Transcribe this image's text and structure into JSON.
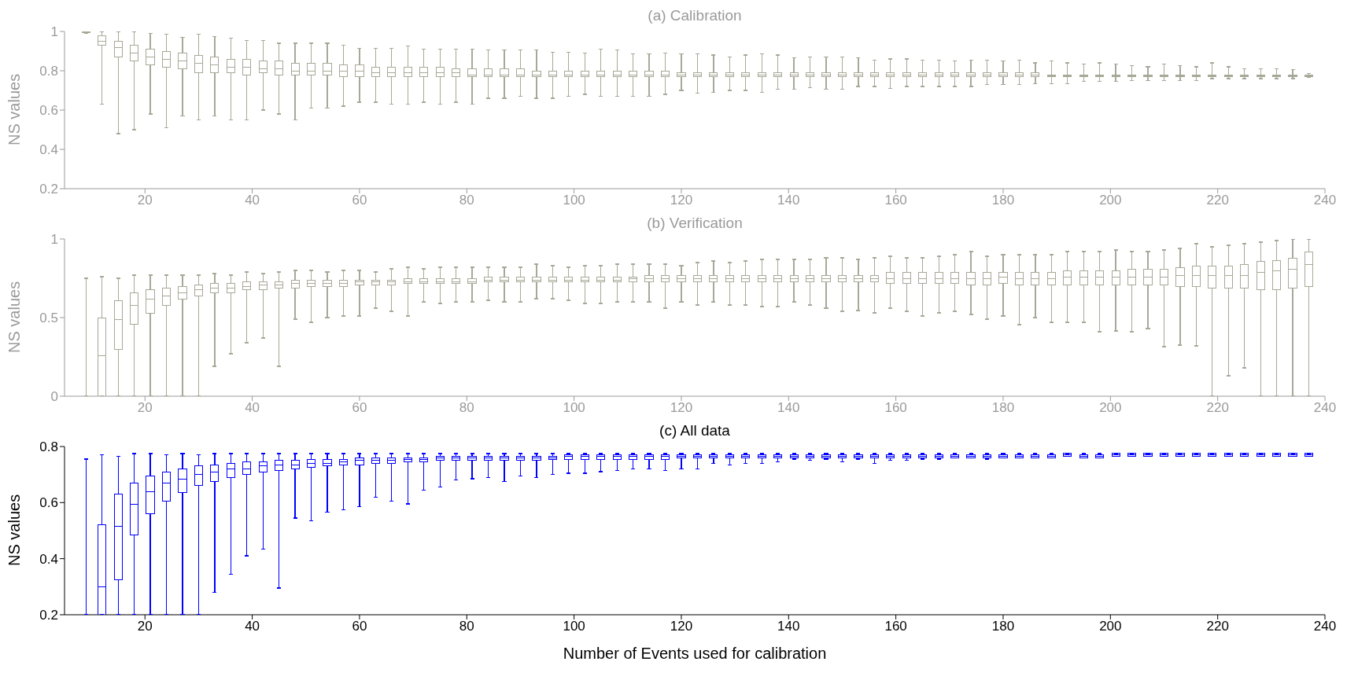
{
  "chart_data": [
    {
      "type": "box",
      "title": "(a) Calibration",
      "ylabel": "NS values",
      "color": "#a8a898",
      "xlim": [
        5,
        240
      ],
      "xticks": [
        20,
        40,
        60,
        80,
        100,
        120,
        140,
        160,
        180,
        200,
        220,
        240
      ],
      "ylim": [
        0.2,
        1
      ],
      "yticks": [
        0.2,
        0.4,
        0.6,
        0.8,
        1
      ],
      "x": [
        9,
        12,
        15,
        18,
        21,
        24,
        27,
        30,
        33,
        36,
        39,
        42,
        45,
        48,
        51,
        54,
        57,
        60,
        63,
        66,
        69,
        72,
        75,
        78,
        81,
        84,
        87,
        90,
        93,
        96,
        99,
        102,
        105,
        108,
        111,
        114,
        117,
        120,
        123,
        126,
        129,
        132,
        135,
        138,
        141,
        144,
        147,
        150,
        153,
        156,
        159,
        162,
        165,
        168,
        171,
        174,
        177,
        180,
        183,
        186,
        189,
        192,
        195,
        198,
        201,
        204,
        207,
        210,
        213,
        216,
        219,
        222,
        225,
        228,
        231,
        234,
        237
      ],
      "boxes": [
        {
          "low": 0.99,
          "q1": 0.995,
          "median": 0.997,
          "q3": 0.999,
          "high": 1
        },
        {
          "low": 0.63,
          "q1": 0.93,
          "median": 0.95,
          "q3": 0.98,
          "high": 1
        },
        {
          "low": 0.48,
          "q1": 0.87,
          "median": 0.92,
          "q3": 0.95,
          "high": 1
        },
        {
          "low": 0.5,
          "q1": 0.85,
          "median": 0.89,
          "q3": 0.93,
          "high": 1
        },
        {
          "low": 0.58,
          "q1": 0.83,
          "median": 0.87,
          "q3": 0.91,
          "high": 0.99
        },
        {
          "low": 0.51,
          "q1": 0.82,
          "median": 0.86,
          "q3": 0.9,
          "high": 0.985
        },
        {
          "low": 0.57,
          "q1": 0.81,
          "median": 0.85,
          "q3": 0.89,
          "high": 0.97
        },
        {
          "low": 0.55,
          "q1": 0.79,
          "median": 0.84,
          "q3": 0.88,
          "high": 0.985
        },
        {
          "low": 0.57,
          "q1": 0.79,
          "median": 0.83,
          "q3": 0.87,
          "high": 0.975
        },
        {
          "low": 0.55,
          "q1": 0.79,
          "median": 0.82,
          "q3": 0.86,
          "high": 0.965
        },
        {
          "low": 0.55,
          "q1": 0.78,
          "median": 0.82,
          "q3": 0.86,
          "high": 0.955
        },
        {
          "low": 0.6,
          "q1": 0.79,
          "median": 0.81,
          "q3": 0.85,
          "high": 0.955
        },
        {
          "low": 0.58,
          "q1": 0.78,
          "median": 0.81,
          "q3": 0.85,
          "high": 0.94
        },
        {
          "low": 0.55,
          "q1": 0.78,
          "median": 0.8,
          "q3": 0.84,
          "high": 0.94
        },
        {
          "low": 0.61,
          "q1": 0.78,
          "median": 0.8,
          "q3": 0.84,
          "high": 0.94
        },
        {
          "low": 0.61,
          "q1": 0.78,
          "median": 0.8,
          "q3": 0.84,
          "high": 0.94
        },
        {
          "low": 0.62,
          "q1": 0.77,
          "median": 0.8,
          "q3": 0.83,
          "high": 0.93
        },
        {
          "low": 0.64,
          "q1": 0.77,
          "median": 0.8,
          "q3": 0.83,
          "high": 0.915
        },
        {
          "low": 0.64,
          "q1": 0.77,
          "median": 0.79,
          "q3": 0.82,
          "high": 0.915
        },
        {
          "low": 0.63,
          "q1": 0.77,
          "median": 0.79,
          "q3": 0.82,
          "high": 0.915
        },
        {
          "low": 0.63,
          "q1": 0.77,
          "median": 0.79,
          "q3": 0.82,
          "high": 0.925
        },
        {
          "low": 0.64,
          "q1": 0.77,
          "median": 0.79,
          "q3": 0.82,
          "high": 0.91
        },
        {
          "low": 0.63,
          "q1": 0.77,
          "median": 0.79,
          "q3": 0.82,
          "high": 0.91
        },
        {
          "low": 0.64,
          "q1": 0.77,
          "median": 0.79,
          "q3": 0.81,
          "high": 0.91
        },
        {
          "low": 0.63,
          "q1": 0.77,
          "median": 0.78,
          "q3": 0.81,
          "high": 0.91
        },
        {
          "low": 0.66,
          "q1": 0.77,
          "median": 0.78,
          "q3": 0.81,
          "high": 0.905
        },
        {
          "low": 0.66,
          "q1": 0.77,
          "median": 0.78,
          "q3": 0.81,
          "high": 0.905
        },
        {
          "low": 0.67,
          "q1": 0.77,
          "median": 0.78,
          "q3": 0.81,
          "high": 0.905
        },
        {
          "low": 0.66,
          "q1": 0.77,
          "median": 0.78,
          "q3": 0.8,
          "high": 0.905
        },
        {
          "low": 0.66,
          "q1": 0.77,
          "median": 0.78,
          "q3": 0.8,
          "high": 0.895
        },
        {
          "low": 0.67,
          "q1": 0.77,
          "median": 0.78,
          "q3": 0.8,
          "high": 0.895
        },
        {
          "low": 0.68,
          "q1": 0.77,
          "median": 0.78,
          "q3": 0.8,
          "high": 0.89
        },
        {
          "low": 0.67,
          "q1": 0.77,
          "median": 0.78,
          "q3": 0.8,
          "high": 0.91
        },
        {
          "low": 0.67,
          "q1": 0.77,
          "median": 0.78,
          "q3": 0.8,
          "high": 0.905
        },
        {
          "low": 0.67,
          "q1": 0.77,
          "median": 0.78,
          "q3": 0.8,
          "high": 0.885
        },
        {
          "low": 0.67,
          "q1": 0.77,
          "median": 0.78,
          "q3": 0.8,
          "high": 0.885
        },
        {
          "low": 0.68,
          "q1": 0.77,
          "median": 0.78,
          "q3": 0.8,
          "high": 0.89
        },
        {
          "low": 0.7,
          "q1": 0.77,
          "median": 0.78,
          "q3": 0.79,
          "high": 0.885
        },
        {
          "low": 0.685,
          "q1": 0.77,
          "median": 0.78,
          "q3": 0.79,
          "high": 0.885
        },
        {
          "low": 0.69,
          "q1": 0.77,
          "median": 0.78,
          "q3": 0.79,
          "high": 0.88
        },
        {
          "low": 0.7,
          "q1": 0.77,
          "median": 0.78,
          "q3": 0.79,
          "high": 0.87
        },
        {
          "low": 0.7,
          "q1": 0.77,
          "median": 0.78,
          "q3": 0.79,
          "high": 0.88
        },
        {
          "low": 0.69,
          "q1": 0.77,
          "median": 0.78,
          "q3": 0.79,
          "high": 0.885
        },
        {
          "low": 0.705,
          "q1": 0.77,
          "median": 0.78,
          "q3": 0.79,
          "high": 0.88
        },
        {
          "low": 0.705,
          "q1": 0.77,
          "median": 0.78,
          "q3": 0.79,
          "high": 0.865
        },
        {
          "low": 0.715,
          "q1": 0.77,
          "median": 0.78,
          "q3": 0.79,
          "high": 0.87
        },
        {
          "low": 0.705,
          "q1": 0.77,
          "median": 0.78,
          "q3": 0.79,
          "high": 0.87
        },
        {
          "low": 0.705,
          "q1": 0.77,
          "median": 0.78,
          "q3": 0.79,
          "high": 0.87
        },
        {
          "low": 0.72,
          "q1": 0.77,
          "median": 0.78,
          "q3": 0.79,
          "high": 0.865
        },
        {
          "low": 0.72,
          "q1": 0.77,
          "median": 0.78,
          "q3": 0.79,
          "high": 0.855
        },
        {
          "low": 0.71,
          "q1": 0.77,
          "median": 0.78,
          "q3": 0.79,
          "high": 0.86
        },
        {
          "low": 0.72,
          "q1": 0.77,
          "median": 0.78,
          "q3": 0.79,
          "high": 0.86
        },
        {
          "low": 0.72,
          "q1": 0.77,
          "median": 0.78,
          "q3": 0.79,
          "high": 0.855
        },
        {
          "low": 0.72,
          "q1": 0.77,
          "median": 0.78,
          "q3": 0.79,
          "high": 0.855
        },
        {
          "low": 0.72,
          "q1": 0.77,
          "median": 0.78,
          "q3": 0.79,
          "high": 0.85
        },
        {
          "low": 0.72,
          "q1": 0.77,
          "median": 0.78,
          "q3": 0.79,
          "high": 0.855
        },
        {
          "low": 0.73,
          "q1": 0.77,
          "median": 0.78,
          "q3": 0.79,
          "high": 0.855
        },
        {
          "low": 0.73,
          "q1": 0.77,
          "median": 0.78,
          "q3": 0.79,
          "high": 0.85
        },
        {
          "low": 0.73,
          "q1": 0.77,
          "median": 0.78,
          "q3": 0.79,
          "high": 0.855
        },
        {
          "low": 0.735,
          "q1": 0.77,
          "median": 0.78,
          "q3": 0.79,
          "high": 0.84
        },
        {
          "low": 0.735,
          "q1": 0.77,
          "median": 0.775,
          "q3": 0.78,
          "high": 0.85
        },
        {
          "low": 0.735,
          "q1": 0.77,
          "median": 0.775,
          "q3": 0.78,
          "high": 0.84
        },
        {
          "low": 0.745,
          "q1": 0.77,
          "median": 0.775,
          "q3": 0.78,
          "high": 0.835
        },
        {
          "low": 0.745,
          "q1": 0.77,
          "median": 0.775,
          "q3": 0.78,
          "high": 0.84
        },
        {
          "low": 0.745,
          "q1": 0.77,
          "median": 0.775,
          "q3": 0.78,
          "high": 0.835
        },
        {
          "low": 0.75,
          "q1": 0.77,
          "median": 0.775,
          "q3": 0.78,
          "high": 0.825
        },
        {
          "low": 0.75,
          "q1": 0.77,
          "median": 0.775,
          "q3": 0.78,
          "high": 0.82
        },
        {
          "low": 0.75,
          "q1": 0.77,
          "median": 0.775,
          "q3": 0.78,
          "high": 0.835
        },
        {
          "low": 0.75,
          "q1": 0.77,
          "median": 0.775,
          "q3": 0.78,
          "high": 0.825
        },
        {
          "low": 0.75,
          "q1": 0.77,
          "median": 0.775,
          "q3": 0.78,
          "high": 0.82
        },
        {
          "low": 0.76,
          "q1": 0.77,
          "median": 0.775,
          "q3": 0.78,
          "high": 0.84
        },
        {
          "low": 0.76,
          "q1": 0.77,
          "median": 0.775,
          "q3": 0.78,
          "high": 0.82
        },
        {
          "low": 0.76,
          "q1": 0.77,
          "median": 0.775,
          "q3": 0.78,
          "high": 0.81
        },
        {
          "low": 0.76,
          "q1": 0.77,
          "median": 0.775,
          "q3": 0.78,
          "high": 0.81
        },
        {
          "low": 0.76,
          "q1": 0.77,
          "median": 0.775,
          "q3": 0.78,
          "high": 0.81
        },
        {
          "low": 0.76,
          "q1": 0.77,
          "median": 0.775,
          "q3": 0.78,
          "high": 0.805
        },
        {
          "low": 0.765,
          "q1": 0.77,
          "median": 0.775,
          "q3": 0.78,
          "high": 0.785
        }
      ]
    },
    {
      "type": "box",
      "title": "(b) Verification",
      "ylabel": "NS values",
      "color": "#a8a898",
      "xlim": [
        5,
        240
      ],
      "xticks": [
        20,
        40,
        60,
        80,
        100,
        120,
        140,
        160,
        180,
        200,
        220,
        240
      ],
      "ylim": [
        0,
        1
      ],
      "yticks": [
        0,
        0.5,
        1
      ],
      "x": [
        9,
        12,
        15,
        18,
        21,
        24,
        27,
        30,
        33,
        36,
        39,
        42,
        45,
        48,
        51,
        54,
        57,
        60,
        63,
        66,
        69,
        72,
        75,
        78,
        81,
        84,
        87,
        90,
        93,
        96,
        99,
        102,
        105,
        108,
        111,
        114,
        117,
        120,
        123,
        126,
        129,
        132,
        135,
        138,
        141,
        144,
        147,
        150,
        153,
        156,
        159,
        162,
        165,
        168,
        171,
        174,
        177,
        180,
        183,
        186,
        189,
        192,
        195,
        198,
        201,
        204,
        207,
        210,
        213,
        216,
        219,
        222,
        225,
        228,
        231,
        234,
        237
      ],
      "boxes": [
        {
          "low": 0,
          "q1": 0,
          "median": 0,
          "q3": 0,
          "high": 0.75
        },
        {
          "low": 0,
          "q1": 0,
          "median": 0.26,
          "q3": 0.5,
          "high": 0.76
        },
        {
          "low": 0,
          "q1": 0.3,
          "median": 0.49,
          "q3": 0.61,
          "high": 0.75
        },
        {
          "low": 0,
          "q1": 0.46,
          "median": 0.58,
          "q3": 0.66,
          "high": 0.77
        },
        {
          "low": 0,
          "q1": 0.53,
          "median": 0.62,
          "q3": 0.68,
          "high": 0.77
        },
        {
          "low": 0,
          "q1": 0.58,
          "median": 0.64,
          "q3": 0.69,
          "high": 0.77
        },
        {
          "low": 0,
          "q1": 0.62,
          "median": 0.66,
          "q3": 0.7,
          "high": 0.77
        },
        {
          "low": 0,
          "q1": 0.64,
          "median": 0.68,
          "q3": 0.71,
          "high": 0.77
        },
        {
          "low": 0.19,
          "q1": 0.66,
          "median": 0.69,
          "q3": 0.72,
          "high": 0.78
        },
        {
          "low": 0.27,
          "q1": 0.66,
          "median": 0.69,
          "q3": 0.72,
          "high": 0.77
        },
        {
          "low": 0.34,
          "q1": 0.68,
          "median": 0.7,
          "q3": 0.73,
          "high": 0.79
        },
        {
          "low": 0.37,
          "q1": 0.68,
          "median": 0.71,
          "q3": 0.73,
          "high": 0.78
        },
        {
          "low": 0.19,
          "q1": 0.69,
          "median": 0.71,
          "q3": 0.73,
          "high": 0.79
        },
        {
          "low": 0.49,
          "q1": 0.69,
          "median": 0.72,
          "q3": 0.74,
          "high": 0.8
        },
        {
          "low": 0.47,
          "q1": 0.7,
          "median": 0.72,
          "q3": 0.74,
          "high": 0.8
        },
        {
          "low": 0.5,
          "q1": 0.7,
          "median": 0.72,
          "q3": 0.74,
          "high": 0.79
        },
        {
          "low": 0.51,
          "q1": 0.7,
          "median": 0.72,
          "q3": 0.74,
          "high": 0.8
        },
        {
          "low": 0.51,
          "q1": 0.71,
          "median": 0.73,
          "q3": 0.74,
          "high": 0.8
        },
        {
          "low": 0.56,
          "q1": 0.71,
          "median": 0.73,
          "q3": 0.74,
          "high": 0.79
        },
        {
          "low": 0.54,
          "q1": 0.71,
          "median": 0.73,
          "q3": 0.74,
          "high": 0.81
        },
        {
          "low": 0.51,
          "q1": 0.72,
          "median": 0.73,
          "q3": 0.75,
          "high": 0.82
        },
        {
          "low": 0.6,
          "q1": 0.72,
          "median": 0.73,
          "q3": 0.75,
          "high": 0.81
        },
        {
          "low": 0.59,
          "q1": 0.72,
          "median": 0.73,
          "q3": 0.75,
          "high": 0.82
        },
        {
          "low": 0.6,
          "q1": 0.72,
          "median": 0.73,
          "q3": 0.75,
          "high": 0.82
        },
        {
          "low": 0.6,
          "q1": 0.72,
          "median": 0.73,
          "q3": 0.75,
          "high": 0.82
        },
        {
          "low": 0.61,
          "q1": 0.73,
          "median": 0.74,
          "q3": 0.76,
          "high": 0.82
        },
        {
          "low": 0.6,
          "q1": 0.73,
          "median": 0.74,
          "q3": 0.76,
          "high": 0.82
        },
        {
          "low": 0.6,
          "q1": 0.73,
          "median": 0.74,
          "q3": 0.76,
          "high": 0.82
        },
        {
          "low": 0.62,
          "q1": 0.73,
          "median": 0.74,
          "q3": 0.76,
          "high": 0.84
        },
        {
          "low": 0.62,
          "q1": 0.73,
          "median": 0.74,
          "q3": 0.76,
          "high": 0.83
        },
        {
          "low": 0.61,
          "q1": 0.73,
          "median": 0.74,
          "q3": 0.76,
          "high": 0.82
        },
        {
          "low": 0.59,
          "q1": 0.73,
          "median": 0.74,
          "q3": 0.76,
          "high": 0.83
        },
        {
          "low": 0.59,
          "q1": 0.73,
          "median": 0.74,
          "q3": 0.76,
          "high": 0.83
        },
        {
          "low": 0.6,
          "q1": 0.73,
          "median": 0.74,
          "q3": 0.76,
          "high": 0.84
        },
        {
          "low": 0.6,
          "q1": 0.73,
          "median": 0.75,
          "q3": 0.76,
          "high": 0.84
        },
        {
          "low": 0.6,
          "q1": 0.73,
          "median": 0.75,
          "q3": 0.77,
          "high": 0.84
        },
        {
          "low": 0.56,
          "q1": 0.73,
          "median": 0.75,
          "q3": 0.77,
          "high": 0.84
        },
        {
          "low": 0.6,
          "q1": 0.73,
          "median": 0.75,
          "q3": 0.77,
          "high": 0.83
        },
        {
          "low": 0.58,
          "q1": 0.73,
          "median": 0.75,
          "q3": 0.77,
          "high": 0.85
        },
        {
          "low": 0.6,
          "q1": 0.73,
          "median": 0.75,
          "q3": 0.77,
          "high": 0.86
        },
        {
          "low": 0.58,
          "q1": 0.73,
          "median": 0.75,
          "q3": 0.77,
          "high": 0.85
        },
        {
          "low": 0.58,
          "q1": 0.73,
          "median": 0.75,
          "q3": 0.77,
          "high": 0.86
        },
        {
          "low": 0.57,
          "q1": 0.73,
          "median": 0.75,
          "q3": 0.77,
          "high": 0.87
        },
        {
          "low": 0.57,
          "q1": 0.73,
          "median": 0.75,
          "q3": 0.77,
          "high": 0.87
        },
        {
          "low": 0.6,
          "q1": 0.73,
          "median": 0.75,
          "q3": 0.77,
          "high": 0.87
        },
        {
          "low": 0.58,
          "q1": 0.73,
          "median": 0.75,
          "q3": 0.77,
          "high": 0.87
        },
        {
          "low": 0.56,
          "q1": 0.73,
          "median": 0.75,
          "q3": 0.77,
          "high": 0.88
        },
        {
          "low": 0.54,
          "q1": 0.73,
          "median": 0.75,
          "q3": 0.77,
          "high": 0.88
        },
        {
          "low": 0.545,
          "q1": 0.73,
          "median": 0.75,
          "q3": 0.77,
          "high": 0.87
        },
        {
          "low": 0.53,
          "q1": 0.73,
          "median": 0.75,
          "q3": 0.77,
          "high": 0.88
        },
        {
          "low": 0.56,
          "q1": 0.72,
          "median": 0.75,
          "q3": 0.79,
          "high": 0.89
        },
        {
          "low": 0.54,
          "q1": 0.72,
          "median": 0.75,
          "q3": 0.79,
          "high": 0.88
        },
        {
          "low": 0.51,
          "q1": 0.72,
          "median": 0.75,
          "q3": 0.79,
          "high": 0.88
        },
        {
          "low": 0.53,
          "q1": 0.72,
          "median": 0.75,
          "q3": 0.79,
          "high": 0.89
        },
        {
          "low": 0.54,
          "q1": 0.72,
          "median": 0.75,
          "q3": 0.79,
          "high": 0.9
        },
        {
          "low": 0.52,
          "q1": 0.71,
          "median": 0.75,
          "q3": 0.79,
          "high": 0.92
        },
        {
          "low": 0.49,
          "q1": 0.71,
          "median": 0.75,
          "q3": 0.79,
          "high": 0.89
        },
        {
          "low": 0.51,
          "q1": 0.72,
          "median": 0.76,
          "q3": 0.79,
          "high": 0.9
        },
        {
          "low": 0.455,
          "q1": 0.71,
          "median": 0.75,
          "q3": 0.79,
          "high": 0.9
        },
        {
          "low": 0.5,
          "q1": 0.71,
          "median": 0.75,
          "q3": 0.79,
          "high": 0.9
        },
        {
          "low": 0.47,
          "q1": 0.71,
          "median": 0.75,
          "q3": 0.79,
          "high": 0.9
        },
        {
          "low": 0.47,
          "q1": 0.71,
          "median": 0.76,
          "q3": 0.8,
          "high": 0.92
        },
        {
          "low": 0.47,
          "q1": 0.71,
          "median": 0.76,
          "q3": 0.8,
          "high": 0.92
        },
        {
          "low": 0.41,
          "q1": 0.71,
          "median": 0.76,
          "q3": 0.8,
          "high": 0.92
        },
        {
          "low": 0.415,
          "q1": 0.71,
          "median": 0.76,
          "q3": 0.8,
          "high": 0.93
        },
        {
          "low": 0.41,
          "q1": 0.71,
          "median": 0.76,
          "q3": 0.81,
          "high": 0.92
        },
        {
          "low": 0.43,
          "q1": 0.71,
          "median": 0.76,
          "q3": 0.81,
          "high": 0.92
        },
        {
          "low": 0.315,
          "q1": 0.71,
          "median": 0.76,
          "q3": 0.81,
          "high": 0.93
        },
        {
          "low": 0.325,
          "q1": 0.7,
          "median": 0.77,
          "q3": 0.82,
          "high": 0.94
        },
        {
          "low": 0.32,
          "q1": 0.7,
          "median": 0.77,
          "q3": 0.83,
          "high": 0.97
        },
        {
          "low": 0,
          "q1": 0.69,
          "median": 0.77,
          "q3": 0.83,
          "high": 0.95
        },
        {
          "low": 0.13,
          "q1": 0.69,
          "median": 0.77,
          "q3": 0.83,
          "high": 0.96
        },
        {
          "low": 0.18,
          "q1": 0.69,
          "median": 0.77,
          "q3": 0.84,
          "high": 0.97
        },
        {
          "low": 0,
          "q1": 0.68,
          "median": 0.79,
          "q3": 0.86,
          "high": 0.98
        },
        {
          "low": 0,
          "q1": 0.68,
          "median": 0.8,
          "q3": 0.865,
          "high": 0.99
        },
        {
          "low": 0,
          "q1": 0.69,
          "median": 0.81,
          "q3": 0.88,
          "high": 1
        },
        {
          "low": 0,
          "q1": 0.7,
          "median": 0.84,
          "q3": 0.92,
          "high": 1
        }
      ]
    },
    {
      "type": "box",
      "title": "(c) All data",
      "xlabel": "Number of Events used for calibration",
      "ylabel": "NS values",
      "color": "#0000ff",
      "xlim": [
        5,
        240
      ],
      "xticks": [
        20,
        40,
        60,
        80,
        100,
        120,
        140,
        160,
        180,
        200,
        220,
        240
      ],
      "ylim": [
        0.2,
        0.8
      ],
      "yticks": [
        0.2,
        0.4,
        0.6,
        0.8
      ],
      "x": [
        9,
        12,
        15,
        18,
        21,
        24,
        27,
        30,
        33,
        36,
        39,
        42,
        45,
        48,
        51,
        54,
        57,
        60,
        63,
        66,
        69,
        72,
        75,
        78,
        81,
        84,
        87,
        90,
        93,
        96,
        99,
        102,
        105,
        108,
        111,
        114,
        117,
        120,
        123,
        126,
        129,
        132,
        135,
        138,
        141,
        144,
        147,
        150,
        153,
        156,
        159,
        162,
        165,
        168,
        171,
        174,
        177,
        180,
        183,
        186,
        189,
        192,
        195,
        198,
        201,
        204,
        207,
        210,
        213,
        216,
        219,
        222,
        225,
        228,
        231,
        234,
        237
      ],
      "boxes": [
        {
          "low": 0.2,
          "q1": 0.2,
          "median": 0.2,
          "q3": 0.2,
          "high": 0.755
        },
        {
          "low": 0.2,
          "q1": 0.2,
          "median": 0.3,
          "q3": 0.52,
          "high": 0.77
        },
        {
          "low": 0.2,
          "q1": 0.325,
          "median": 0.515,
          "q3": 0.63,
          "high": 0.765
        },
        {
          "low": 0.2,
          "q1": 0.485,
          "median": 0.595,
          "q3": 0.67,
          "high": 0.775
        },
        {
          "low": 0.2,
          "q1": 0.56,
          "median": 0.64,
          "q3": 0.695,
          "high": 0.775
        },
        {
          "low": 0.2,
          "q1": 0.605,
          "median": 0.67,
          "q3": 0.71,
          "high": 0.77
        },
        {
          "low": 0.2,
          "q1": 0.635,
          "median": 0.685,
          "q3": 0.72,
          "high": 0.775
        },
        {
          "low": 0.2,
          "q1": 0.66,
          "median": 0.7,
          "q3": 0.73,
          "high": 0.77
        },
        {
          "low": 0.28,
          "q1": 0.675,
          "median": 0.71,
          "q3": 0.735,
          "high": 0.775
        },
        {
          "low": 0.345,
          "q1": 0.69,
          "median": 0.72,
          "q3": 0.74,
          "high": 0.775
        },
        {
          "low": 0.41,
          "q1": 0.7,
          "median": 0.72,
          "q3": 0.745,
          "high": 0.775
        },
        {
          "low": 0.435,
          "q1": 0.71,
          "median": 0.73,
          "q3": 0.745,
          "high": 0.775
        },
        {
          "low": 0.295,
          "q1": 0.715,
          "median": 0.735,
          "q3": 0.75,
          "high": 0.775
        },
        {
          "low": 0.545,
          "q1": 0.72,
          "median": 0.735,
          "q3": 0.75,
          "high": 0.775
        },
        {
          "low": 0.535,
          "q1": 0.725,
          "median": 0.74,
          "q3": 0.755,
          "high": 0.775
        },
        {
          "low": 0.565,
          "q1": 0.73,
          "median": 0.74,
          "q3": 0.755,
          "high": 0.775
        },
        {
          "low": 0.575,
          "q1": 0.735,
          "median": 0.745,
          "q3": 0.755,
          "high": 0.775
        },
        {
          "low": 0.585,
          "q1": 0.735,
          "median": 0.75,
          "q3": 0.76,
          "high": 0.775
        },
        {
          "low": 0.62,
          "q1": 0.74,
          "median": 0.75,
          "q3": 0.76,
          "high": 0.775
        },
        {
          "low": 0.605,
          "q1": 0.74,
          "median": 0.75,
          "q3": 0.76,
          "high": 0.775
        },
        {
          "low": 0.595,
          "q1": 0.745,
          "median": 0.755,
          "q3": 0.76,
          "high": 0.775
        },
        {
          "low": 0.645,
          "q1": 0.745,
          "median": 0.755,
          "q3": 0.76,
          "high": 0.775
        },
        {
          "low": 0.655,
          "q1": 0.75,
          "median": 0.76,
          "q3": 0.765,
          "high": 0.775
        },
        {
          "low": 0.68,
          "q1": 0.75,
          "median": 0.76,
          "q3": 0.765,
          "high": 0.775
        },
        {
          "low": 0.685,
          "q1": 0.75,
          "median": 0.76,
          "q3": 0.765,
          "high": 0.775
        },
        {
          "low": 0.69,
          "q1": 0.75,
          "median": 0.76,
          "q3": 0.765,
          "high": 0.775
        },
        {
          "low": 0.675,
          "q1": 0.75,
          "median": 0.76,
          "q3": 0.765,
          "high": 0.775
        },
        {
          "low": 0.695,
          "q1": 0.75,
          "median": 0.76,
          "q3": 0.765,
          "high": 0.775
        },
        {
          "low": 0.69,
          "q1": 0.75,
          "median": 0.76,
          "q3": 0.765,
          "high": 0.775
        },
        {
          "low": 0.7,
          "q1": 0.755,
          "median": 0.76,
          "q3": 0.765,
          "high": 0.775
        },
        {
          "low": 0.705,
          "q1": 0.755,
          "median": 0.765,
          "q3": 0.77,
          "high": 0.775
        },
        {
          "low": 0.705,
          "q1": 0.755,
          "median": 0.765,
          "q3": 0.77,
          "high": 0.775
        },
        {
          "low": 0.71,
          "q1": 0.755,
          "median": 0.765,
          "q3": 0.77,
          "high": 0.775
        },
        {
          "low": 0.715,
          "q1": 0.755,
          "median": 0.765,
          "q3": 0.77,
          "high": 0.775
        },
        {
          "low": 0.72,
          "q1": 0.755,
          "median": 0.765,
          "q3": 0.77,
          "high": 0.775
        },
        {
          "low": 0.72,
          "q1": 0.755,
          "median": 0.765,
          "q3": 0.77,
          "high": 0.775
        },
        {
          "low": 0.715,
          "q1": 0.755,
          "median": 0.765,
          "q3": 0.77,
          "high": 0.775
        },
        {
          "low": 0.72,
          "q1": 0.76,
          "median": 0.765,
          "q3": 0.77,
          "high": 0.775
        },
        {
          "low": 0.72,
          "q1": 0.76,
          "median": 0.765,
          "q3": 0.77,
          "high": 0.775
        },
        {
          "low": 0.74,
          "q1": 0.76,
          "median": 0.765,
          "q3": 0.77,
          "high": 0.775
        },
        {
          "low": 0.735,
          "q1": 0.76,
          "median": 0.765,
          "q3": 0.77,
          "high": 0.775
        },
        {
          "low": 0.74,
          "q1": 0.76,
          "median": 0.765,
          "q3": 0.77,
          "high": 0.775
        },
        {
          "low": 0.74,
          "q1": 0.76,
          "median": 0.765,
          "q3": 0.77,
          "high": 0.775
        },
        {
          "low": 0.745,
          "q1": 0.76,
          "median": 0.765,
          "q3": 0.77,
          "high": 0.775
        },
        {
          "low": 0.755,
          "q1": 0.76,
          "median": 0.765,
          "q3": 0.77,
          "high": 0.775
        },
        {
          "low": 0.75,
          "q1": 0.76,
          "median": 0.765,
          "q3": 0.77,
          "high": 0.775
        },
        {
          "low": 0.755,
          "q1": 0.76,
          "median": 0.765,
          "q3": 0.77,
          "high": 0.775
        },
        {
          "low": 0.745,
          "q1": 0.76,
          "median": 0.765,
          "q3": 0.77,
          "high": 0.775
        },
        {
          "low": 0.755,
          "q1": 0.76,
          "median": 0.765,
          "q3": 0.77,
          "high": 0.775
        },
        {
          "low": 0.74,
          "q1": 0.76,
          "median": 0.765,
          "q3": 0.77,
          "high": 0.775
        },
        {
          "low": 0.75,
          "q1": 0.76,
          "median": 0.765,
          "q3": 0.77,
          "high": 0.775
        },
        {
          "low": 0.75,
          "q1": 0.76,
          "median": 0.765,
          "q3": 0.77,
          "high": 0.775
        },
        {
          "low": 0.755,
          "q1": 0.76,
          "median": 0.765,
          "q3": 0.77,
          "high": 0.775
        },
        {
          "low": 0.755,
          "q1": 0.76,
          "median": 0.765,
          "q3": 0.77,
          "high": 0.775
        },
        {
          "low": 0.76,
          "q1": 0.76,
          "median": 0.765,
          "q3": 0.77,
          "high": 0.775
        },
        {
          "low": 0.76,
          "q1": 0.76,
          "median": 0.765,
          "q3": 0.77,
          "high": 0.775
        },
        {
          "low": 0.755,
          "q1": 0.76,
          "median": 0.765,
          "q3": 0.77,
          "high": 0.775
        },
        {
          "low": 0.76,
          "q1": 0.76,
          "median": 0.765,
          "q3": 0.77,
          "high": 0.775
        },
        {
          "low": 0.76,
          "q1": 0.76,
          "median": 0.765,
          "q3": 0.77,
          "high": 0.775
        },
        {
          "low": 0.76,
          "q1": 0.76,
          "median": 0.765,
          "q3": 0.77,
          "high": 0.775
        },
        {
          "low": 0.76,
          "q1": 0.76,
          "median": 0.765,
          "q3": 0.77,
          "high": 0.775
        },
        {
          "low": 0.765,
          "q1": 0.765,
          "median": 0.77,
          "q3": 0.775,
          "high": 0.775
        },
        {
          "low": 0.76,
          "q1": 0.76,
          "median": 0.765,
          "q3": 0.77,
          "high": 0.775
        },
        {
          "low": 0.76,
          "q1": 0.76,
          "median": 0.765,
          "q3": 0.77,
          "high": 0.775
        },
        {
          "low": 0.765,
          "q1": 0.765,
          "median": 0.77,
          "q3": 0.775,
          "high": 0.775
        },
        {
          "low": 0.765,
          "q1": 0.765,
          "median": 0.77,
          "q3": 0.775,
          "high": 0.775
        },
        {
          "low": 0.765,
          "q1": 0.765,
          "median": 0.77,
          "q3": 0.775,
          "high": 0.775
        },
        {
          "low": 0.765,
          "q1": 0.765,
          "median": 0.77,
          "q3": 0.775,
          "high": 0.775
        },
        {
          "low": 0.765,
          "q1": 0.765,
          "median": 0.77,
          "q3": 0.775,
          "high": 0.775
        },
        {
          "low": 0.765,
          "q1": 0.765,
          "median": 0.77,
          "q3": 0.775,
          "high": 0.775
        },
        {
          "low": 0.765,
          "q1": 0.765,
          "median": 0.77,
          "q3": 0.775,
          "high": 0.775
        },
        {
          "low": 0.765,
          "q1": 0.765,
          "median": 0.77,
          "q3": 0.775,
          "high": 0.775
        },
        {
          "low": 0.765,
          "q1": 0.765,
          "median": 0.77,
          "q3": 0.775,
          "high": 0.775
        },
        {
          "low": 0.765,
          "q1": 0.765,
          "median": 0.77,
          "q3": 0.775,
          "high": 0.775
        },
        {
          "low": 0.765,
          "q1": 0.765,
          "median": 0.77,
          "q3": 0.775,
          "high": 0.775
        },
        {
          "low": 0.765,
          "q1": 0.765,
          "median": 0.77,
          "q3": 0.775,
          "high": 0.775
        },
        {
          "low": 0.765,
          "q1": 0.765,
          "median": 0.77,
          "q3": 0.775,
          "high": 0.775
        }
      ]
    }
  ]
}
